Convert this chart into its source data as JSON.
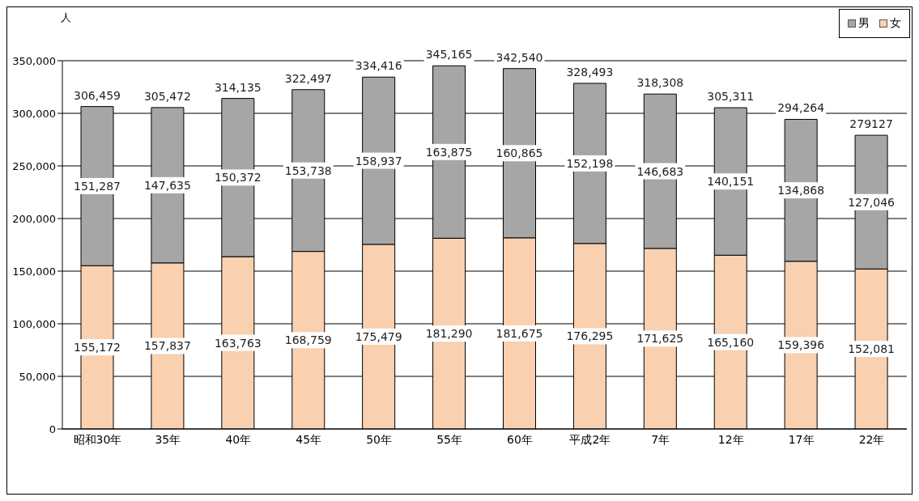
{
  "chart_data": {
    "type": "bar",
    "stacked": true,
    "ylabel": "人",
    "categories": [
      "昭和30年",
      "35年",
      "40年",
      "45年",
      "50年",
      "55年",
      "60年",
      "平成2年",
      "7年",
      "12年",
      "17年",
      "22年"
    ],
    "series": [
      {
        "name": "女",
        "color": "#f9d0b0",
        "values": [
          155172,
          157837,
          163763,
          168759,
          175479,
          181290,
          181675,
          176295,
          171625,
          165160,
          159396,
          152081
        ],
        "value_labels": [
          "155,172",
          "157,837",
          "163,763",
          "168,759",
          "175,479",
          "181,290",
          "181,675",
          "176,295",
          "171,625",
          "165,160",
          "159,396",
          "152,081"
        ]
      },
      {
        "name": "男",
        "color": "#a6a6a6",
        "values": [
          151287,
          147635,
          150372,
          153738,
          158937,
          163875,
          160865,
          152198,
          146683,
          140151,
          134868,
          127046
        ],
        "value_labels": [
          "151,287",
          "147,635",
          "150,372",
          "153,738",
          "158,937",
          "163,875",
          "160,865",
          "152,198",
          "146,683",
          "140,151",
          "134,868",
          "127,046"
        ]
      }
    ],
    "totals": [
      "306,459",
      "305,472",
      "314,135",
      "322,497",
      "334,416",
      "345,165",
      "342,540",
      "328,493",
      "318,308",
      "305,311",
      "294,264",
      "279127"
    ],
    "ylim": [
      0,
      350000
    ],
    "yticks": [
      {
        "value": 0,
        "label": "0"
      },
      {
        "value": 50000,
        "label": "50,000"
      },
      {
        "value": 100000,
        "label": "100,000"
      },
      {
        "value": 150000,
        "label": "150,000"
      },
      {
        "value": 200000,
        "label": "200,000"
      },
      {
        "value": 250000,
        "label": "250,000"
      },
      {
        "value": 300000,
        "label": "300,000"
      },
      {
        "value": 350000,
        "label": "350,000"
      }
    ],
    "grid": "y",
    "legend": "top right"
  }
}
